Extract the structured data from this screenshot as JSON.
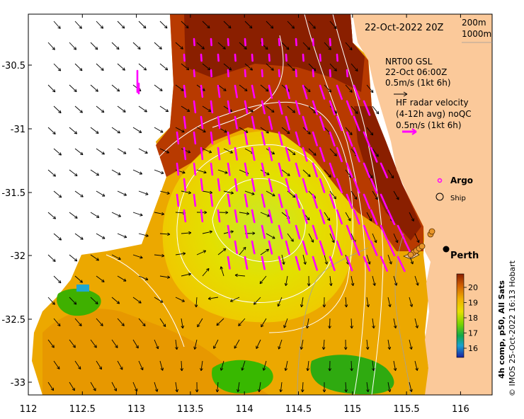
{
  "header": {
    "datetime": "22-Oct-2022 20Z",
    "depth_legend": [
      "200m",
      "1000m"
    ]
  },
  "model_legend": {
    "lines": [
      "NRT00 GSL",
      "22-Oct 06:00Z",
      "0.5m/s (1kt 6h)"
    ]
  },
  "radar_legend": {
    "lines": [
      "HF radar velocity",
      "(4-12h avg) noQC",
      "0.5m/s (1kt 6h)"
    ],
    "color": "#ff00ff"
  },
  "symbols": {
    "argo_label": "Argo",
    "ship_label": "Ship",
    "city_label": "Perth"
  },
  "colorbar": {
    "ticks": [
      "20",
      "19",
      "18",
      "17",
      "16"
    ],
    "label": "4h comp, p50, All Sats"
  },
  "x_ticks": [
    "112",
    "112.5",
    "113",
    "113.5",
    "114",
    "114.5",
    "115",
    "115.5",
    "116"
  ],
  "y_ticks": [
    "-30.5",
    "-31",
    "-31.5",
    "-32",
    "-32.5",
    "-33"
  ],
  "credit": "© IMOS 25-Oct-2022 16:13 Hobart",
  "colors": {
    "land": "#fbc99a",
    "sst_warm": "#8a1f00",
    "sst_mid": "#e8e000",
    "sst_cool": "#2fb600",
    "contour": "#ffffff",
    "arrow": "#000000",
    "radar": "#ff00ff"
  }
}
